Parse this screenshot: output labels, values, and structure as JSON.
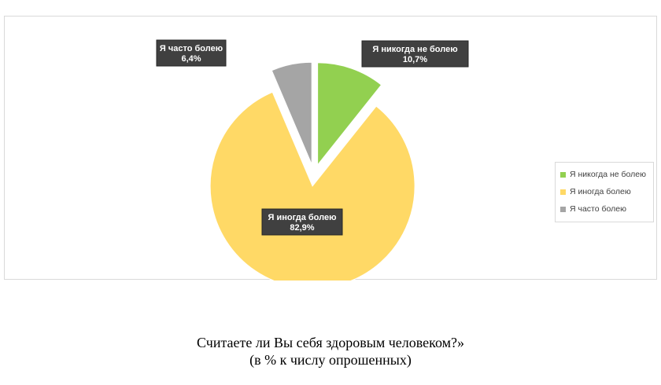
{
  "chart_data": {
    "type": "pie",
    "categories": [
      "Я никогда не болею",
      "Я иногда болею",
      "Я часто болею"
    ],
    "values": [
      10.7,
      82.9,
      6.4
    ],
    "data_labels": [
      "10,7%",
      "82,9%",
      "6,4%"
    ],
    "colors": [
      "#92d050",
      "#ffd966",
      "#a5a5a5"
    ],
    "exploded": true,
    "legend_position": "right",
    "legend_entries": [
      "Я никогда не болею",
      "Я иногда болею",
      "Я часто  болею"
    ]
  },
  "caption": {
    "line1": "Считаете ли Вы себя здоровым человеком?»",
    "line2": "(в % к числу опрошенных)"
  }
}
